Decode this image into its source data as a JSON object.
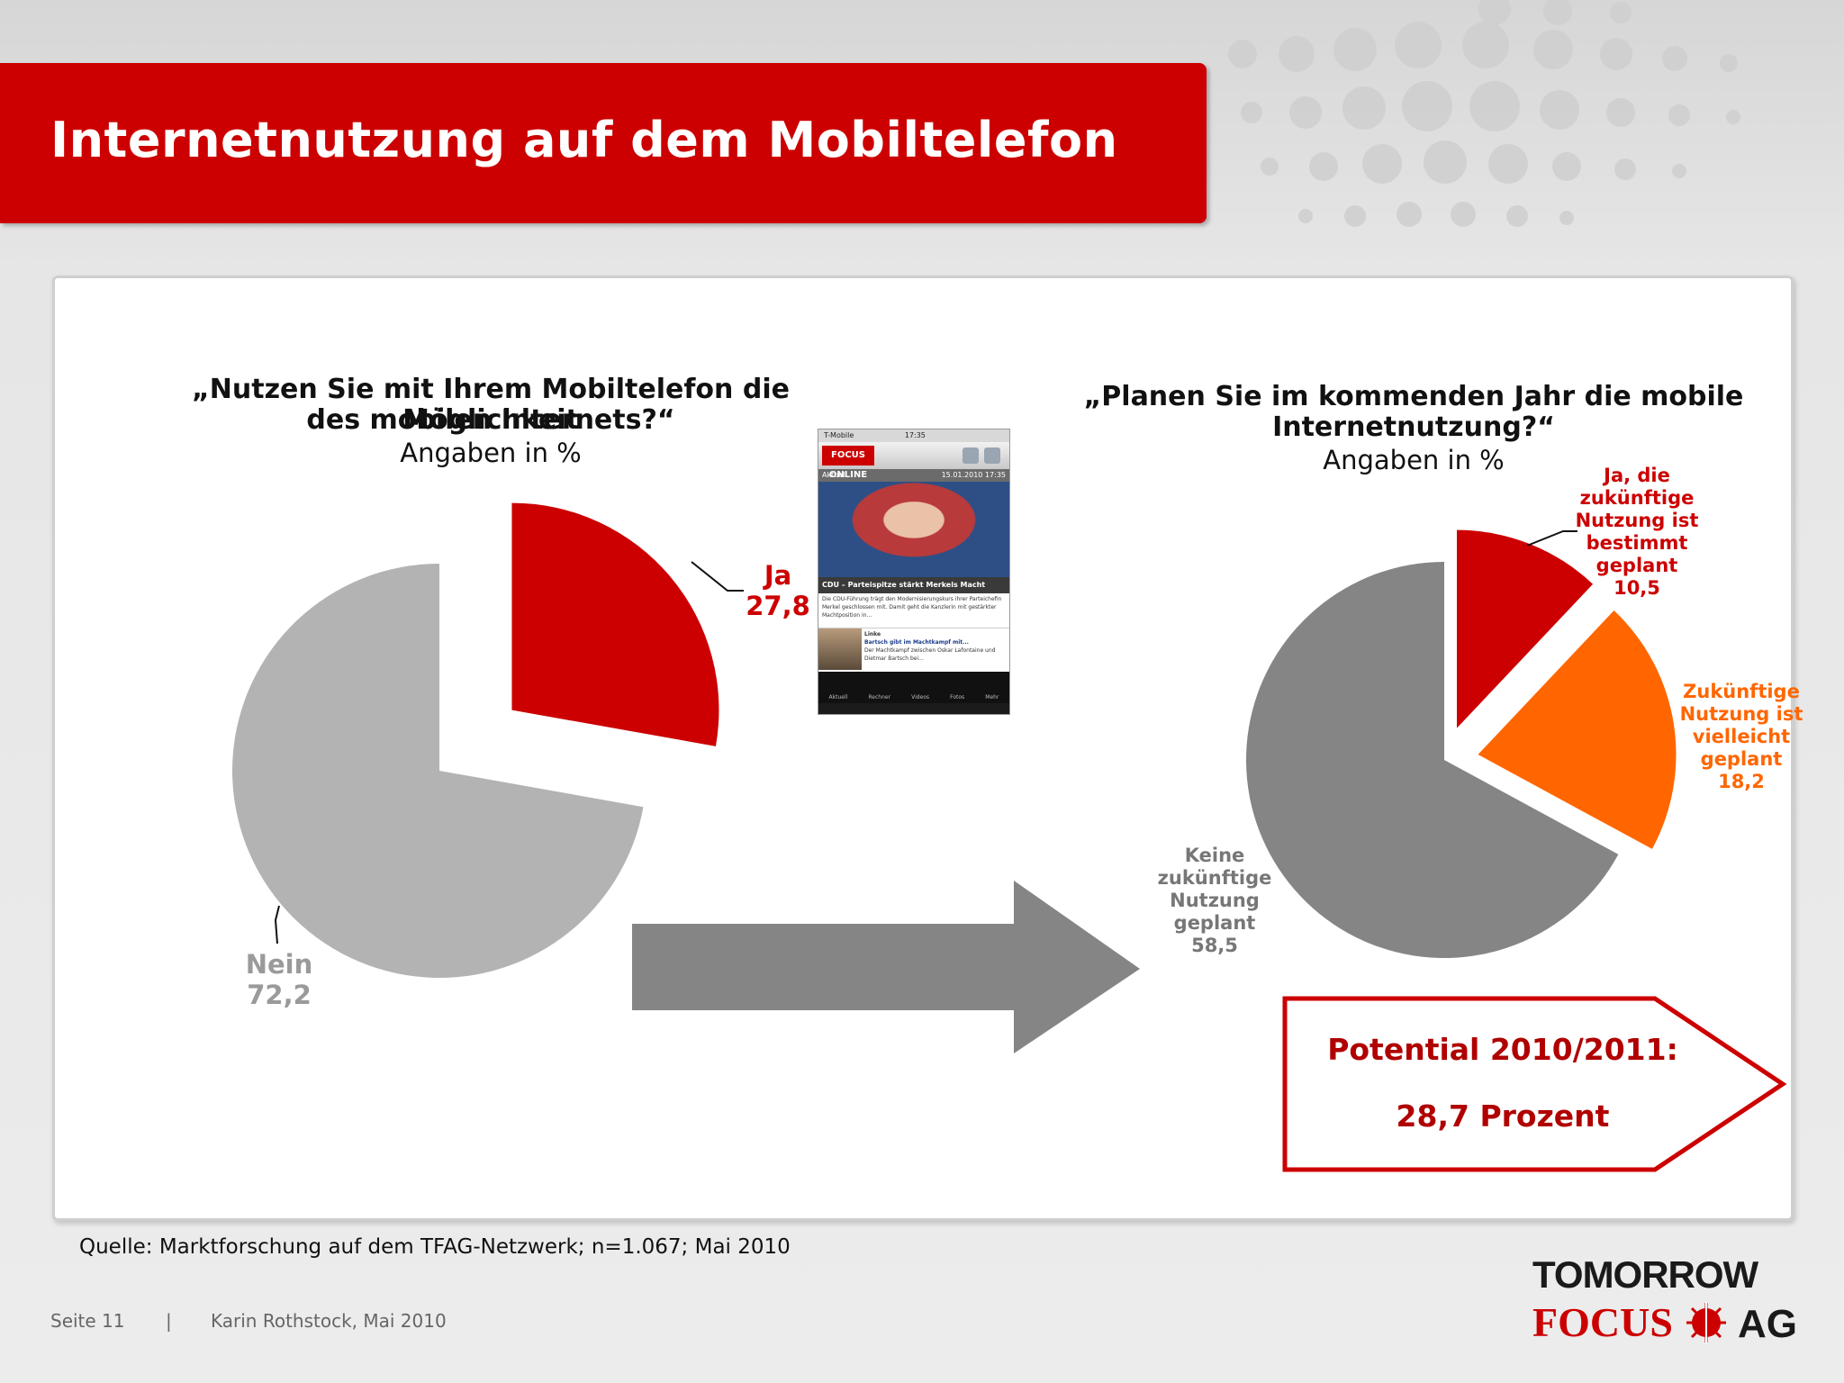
{
  "header": {
    "title": "Internetnutzung auf dem Mobiltelefon"
  },
  "chart_data": [
    {
      "type": "pie",
      "title": "„Nutzen Sie mit Ihrem Mobiltelefon die Möglichkeit des mobilen Internets?“",
      "title_lines": [
        "„Nutzen Sie mit Ihrem Mobiltelefon die Möglichkeit",
        "des mobilen Internets?“"
      ],
      "subtitle": "Angaben in %",
      "slices": [
        {
          "label": "Ja",
          "value": 27.8,
          "value_text": "27,8",
          "color": "#cc0000",
          "exploded": true
        },
        {
          "label": "Nein",
          "value": 72.2,
          "value_text": "72,2",
          "color": "#b3b3b3",
          "exploded": false
        }
      ]
    },
    {
      "type": "pie",
      "title": "„Planen Sie im kommenden Jahr die mobile Internetnutzung?“",
      "title_lines": [
        "„Planen Sie im kommenden Jahr die mobile",
        "Internetnutzung?“"
      ],
      "subtitle": "Angaben in %",
      "slices": [
        {
          "label": "Ja, die zukünftige Nutzung ist bestimmt geplant",
          "label_lines": [
            "Ja, die",
            "zukünftige",
            "Nutzung ist",
            "bestimmt",
            "geplant"
          ],
          "value": 10.5,
          "value_text": "10,5",
          "color": "#cc0000",
          "exploded": true
        },
        {
          "label": "Zukünftige Nutzung ist vielleicht geplant",
          "label_lines": [
            "Zukünftige",
            "Nutzung ist",
            "vielleicht",
            "geplant"
          ],
          "value": 18.2,
          "value_text": "18,2",
          "color": "#ff6600",
          "exploded": true
        },
        {
          "label": "Keine zukünftige Nutzung geplant",
          "label_lines": [
            "Keine",
            "zukünftige",
            "Nutzung",
            "geplant"
          ],
          "value": 58.5,
          "value_text": "58,5",
          "color": "#858585",
          "exploded": false
        }
      ]
    }
  ],
  "phone_screenshot": {
    "carrier": "T-Mobile",
    "time": "17:35",
    "logo": "FOCUS ONLINE",
    "nav_left": "Aktuell",
    "nav_right": "15.01.2010 17:35",
    "category": "CDU",
    "headline": "Parteispitze stärkt Merkels Macht",
    "teaser": "Die CDU-Führung trägt den Modernisierungskurs ihrer Parteichefin Merkel geschlossen mit. Damit geht die Kanzlerin mit gestärkter Machtposition in...",
    "item2_category": "Linke",
    "item2_title": "Bartsch gibt im Machtkampf mit...",
    "item2_text": "Der Machtkampf zwischen Oskar Lafontaine und Dietmar Bartsch bei...",
    "tabs": [
      "Aktuell",
      "Rechner",
      "Videos",
      "Fotos",
      "Mehr"
    ]
  },
  "potential": {
    "line1": "Potential 2010/2011:",
    "line2": "28,7 Prozent"
  },
  "source": "Quelle: Marktforschung auf dem TFAG-Netzwerk; n=1.067; Mai 2010",
  "footer": {
    "page": "Seite 11",
    "separator": "|",
    "author": "Karin Rothstock, Mai 2010"
  },
  "logo": {
    "top": "TOMORROW",
    "focus": "FOCUS",
    "ag": "AG"
  },
  "colors": {
    "brand_red": "#cc0000",
    "orange": "#ff6600",
    "light_grey": "#b3b3b3",
    "dark_grey": "#858585",
    "arrow_grey": "#858585"
  }
}
